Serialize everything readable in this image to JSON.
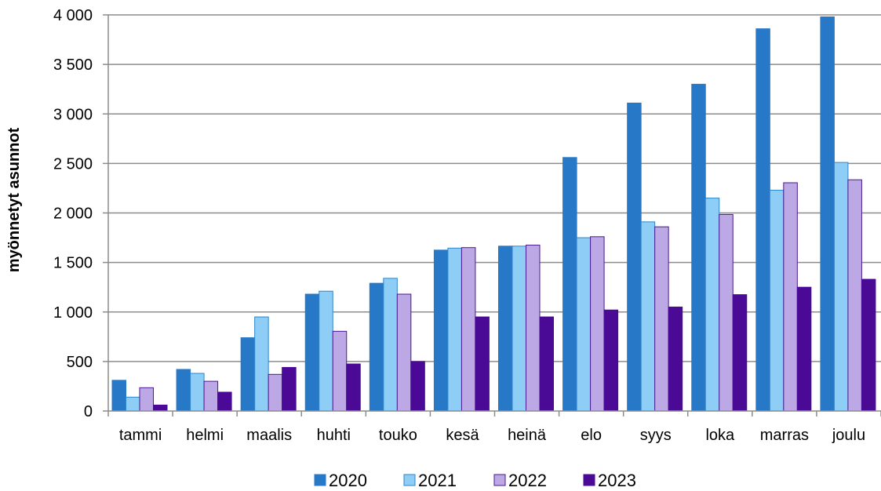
{
  "chart_data": {
    "type": "bar",
    "title": "",
    "xlabel": "",
    "ylabel": "myönnetyt asunnot",
    "ylim": [
      0,
      4000
    ],
    "yticks": [
      0,
      500,
      1000,
      1500,
      2000,
      2500,
      3000,
      3500,
      4000
    ],
    "ytick_labels": [
      "0",
      "500",
      "1 000",
      "1 500",
      "2 000",
      "2 500",
      "3 000",
      "3 500",
      "4 000"
    ],
    "grid": true,
    "legend_position": "bottom",
    "categories": [
      "tammi",
      "helmi",
      "maalis",
      "huhti",
      "touko",
      "kesä",
      "heinä",
      "elo",
      "syys",
      "loka",
      "marras",
      "joulu"
    ],
    "series": [
      {
        "name": "2020",
        "color": "#2878c8",
        "values": [
          310,
          420,
          740,
          1180,
          1290,
          1625,
          1665,
          2560,
          3110,
          3300,
          3860,
          3980
        ]
      },
      {
        "name": "2021",
        "color": "#8ecdf6",
        "values": [
          140,
          380,
          950,
          1210,
          1340,
          1645,
          1665,
          1750,
          1910,
          2150,
          2230,
          2510
        ]
      },
      {
        "name": "2022",
        "color": "#bba8e4",
        "values": [
          235,
          300,
          370,
          805,
          1180,
          1650,
          1675,
          1760,
          1860,
          1985,
          2305,
          2335
        ]
      },
      {
        "name": "2023",
        "color": "#4b0a96",
        "values": [
          60,
          190,
          440,
          475,
          500,
          950,
          950,
          1020,
          1050,
          1175,
          1250,
          1330
        ]
      }
    ],
    "series_stroke": {
      "2020": "#2878c8",
      "2021": "#2f86c8",
      "2022": "#4a1a8c",
      "2023": "#4b0a96"
    }
  }
}
